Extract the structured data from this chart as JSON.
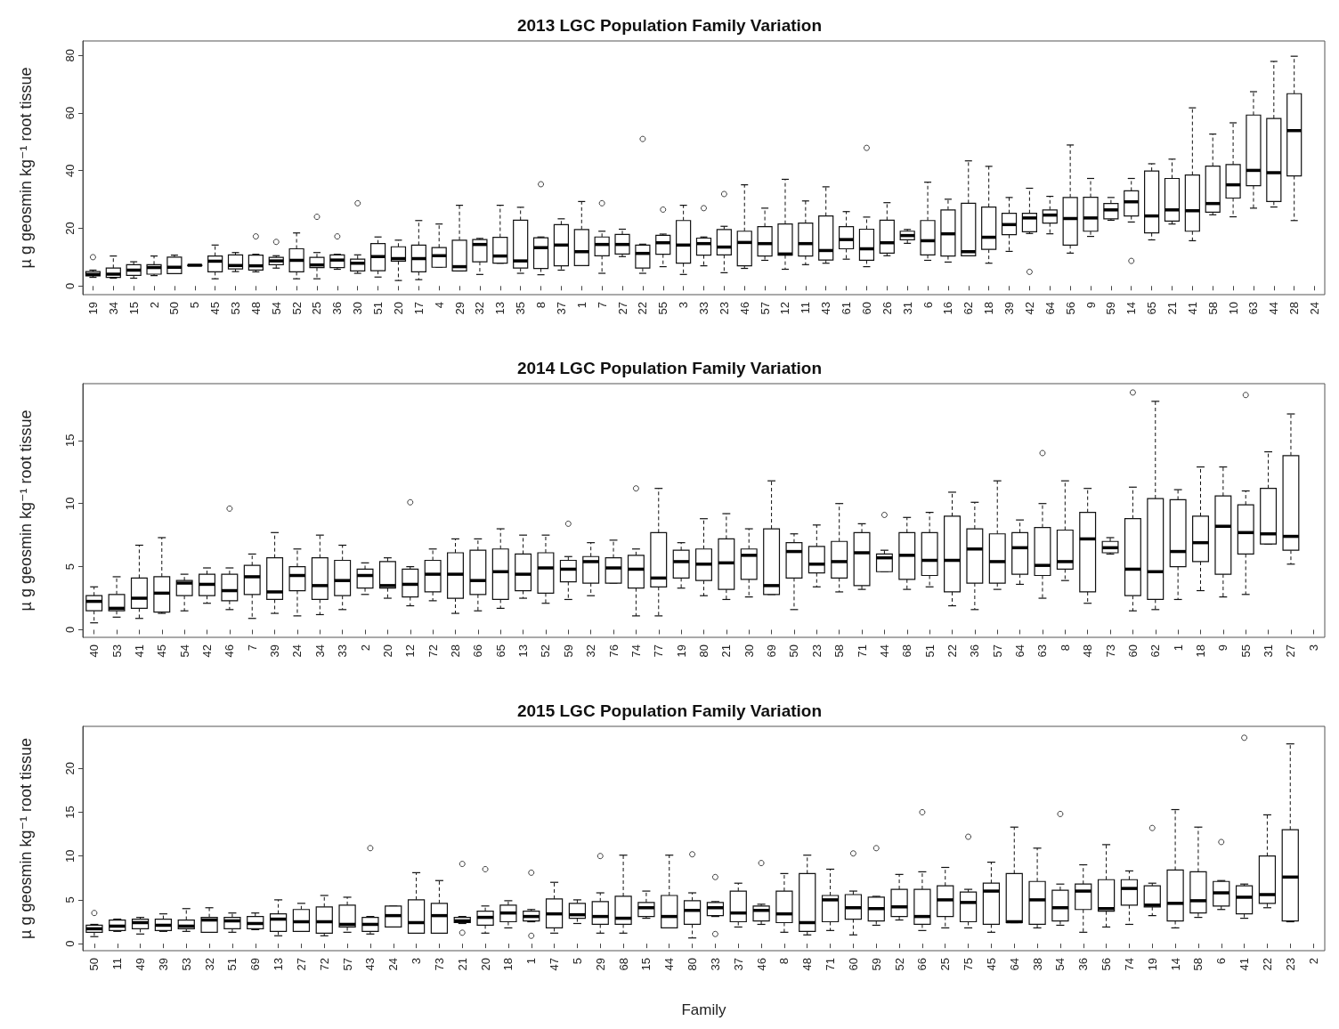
{
  "chart_data": [
    {
      "type": "box",
      "title": "2013 LGC Population Family Variation",
      "ylabel": "µ g geosmin kg⁻¹ root tissue",
      "ylim": [
        -3,
        85
      ],
      "yticks": [
        0,
        20,
        40,
        60,
        80
      ],
      "categories": [
        "19",
        "34",
        "15",
        "2",
        "50",
        "5",
        "45",
        "53",
        "48",
        "54",
        "52",
        "25",
        "36",
        "30",
        "51",
        "20",
        "17",
        "4",
        "29",
        "32",
        "13",
        "35",
        "8",
        "37",
        "1",
        "7",
        "27",
        "22",
        "55",
        "3",
        "33",
        "23",
        "46",
        "57",
        "12",
        "11",
        "43",
        "61",
        "60",
        "26",
        "31",
        "6",
        "16",
        "62",
        "18",
        "39",
        "42",
        "64",
        "56",
        "9",
        "59",
        "14",
        "65",
        "21",
        "41",
        "58",
        "10",
        "63",
        "44",
        "28",
        "24"
      ],
      "boxes": [
        {
          "low": 3,
          "q1": 3.5,
          "median": 4,
          "q3": 5,
          "high": 5.5,
          "outliers": [
            10
          ]
        },
        {
          "low": 2.7,
          "q1": 3,
          "median": 4.1,
          "q3": 6.2,
          "high": 10.4
        },
        {
          "low": 2.7,
          "q1": 3.7,
          "median": 5.5,
          "q3": 7.4,
          "high": 8.4
        },
        {
          "low": 3.6,
          "q1": 4.1,
          "median": 6.4,
          "q3": 7.4,
          "high": 10.4
        },
        {
          "low": 4.3,
          "q1": 4.3,
          "median": 6.5,
          "q3": 10,
          "high": 10.7
        },
        {
          "low": 7.2,
          "q1": 7.2,
          "median": 7.2,
          "q3": 7.2,
          "high": 7.2
        },
        {
          "low": 2.5,
          "q1": 4.9,
          "median": 8.6,
          "q3": 10.4,
          "high": 14.2
        },
        {
          "low": 5,
          "q1": 5.9,
          "median": 7.1,
          "q3": 10.8,
          "high": 11.6
        },
        {
          "low": 4.9,
          "q1": 5.5,
          "median": 7,
          "q3": 10.7,
          "high": 11,
          "outliers": [
            17.2
          ]
        },
        {
          "low": 6.2,
          "q1": 7.4,
          "median": 8.7,
          "q3": 9.9,
          "high": 10.5,
          "outliers": [
            15.3
          ]
        },
        {
          "low": 2.5,
          "q1": 4.9,
          "median": 8.9,
          "q3": 12.9,
          "high": 18.4
        },
        {
          "low": 2.5,
          "q1": 6.4,
          "median": 7.3,
          "q3": 9.9,
          "high": 11.6,
          "outliers": [
            24
          ]
        },
        {
          "low": 5.8,
          "q1": 6.4,
          "median": 9,
          "q3": 10.8,
          "high": 11,
          "outliers": [
            17.2
          ]
        },
        {
          "low": 4.4,
          "q1": 5.2,
          "median": 7.9,
          "q3": 9.3,
          "high": 10.8,
          "outliers": [
            28.7
          ]
        },
        {
          "low": 3.1,
          "q1": 5.3,
          "median": 10.2,
          "q3": 14.7,
          "high": 17
        },
        {
          "low": 1.9,
          "q1": 8.6,
          "median": 9.5,
          "q3": 13.6,
          "high": 15.9
        },
        {
          "low": 2.2,
          "q1": 4.9,
          "median": 9.5,
          "q3": 14.2,
          "high": 22.7
        },
        {
          "low": 6.5,
          "q1": 6.5,
          "median": 10.5,
          "q3": 13.3,
          "high": 21.5
        },
        {
          "low": 5.2,
          "q1": 5.2,
          "median": 6.7,
          "q3": 15.9,
          "high": 28
        },
        {
          "low": 4,
          "q1": 8.4,
          "median": 14.4,
          "q3": 16.1,
          "high": 16.5
        },
        {
          "low": 7.9,
          "q1": 7.9,
          "median": 10.4,
          "q3": 16.9,
          "high": 28
        },
        {
          "low": 4.4,
          "q1": 6.2,
          "median": 8.7,
          "q3": 22.8,
          "high": 27.3
        },
        {
          "low": 3.9,
          "q1": 6.1,
          "median": 13.3,
          "q3": 16.7,
          "high": 17,
          "outliers": [
            35.3
          ]
        },
        {
          "low": 5.5,
          "q1": 7,
          "median": 14.2,
          "q3": 21.3,
          "high": 23.3
        },
        {
          "low": 7.1,
          "q1": 7.1,
          "median": 11.9,
          "q3": 19.6,
          "high": 29.3
        },
        {
          "low": 4.4,
          "q1": 10.5,
          "median": 14.4,
          "q3": 17,
          "high": 19,
          "outliers": [
            28.7
          ]
        },
        {
          "low": 10.2,
          "q1": 11.1,
          "median": 14.4,
          "q3": 17.9,
          "high": 19.7
        },
        {
          "low": 4.4,
          "q1": 6.2,
          "median": 11.3,
          "q3": 14.2,
          "high": 14.5,
          "outliers": [
            51
          ]
        },
        {
          "low": 6.7,
          "q1": 11,
          "median": 15,
          "q3": 17.6,
          "high": 18,
          "outliers": [
            26.5
          ]
        },
        {
          "low": 4,
          "q1": 7.9,
          "median": 14.2,
          "q3": 22.7,
          "high": 28
        },
        {
          "low": 7,
          "q1": 10.7,
          "median": 14.7,
          "q3": 16.6,
          "high": 17,
          "outliers": [
            27
          ]
        },
        {
          "low": 4.6,
          "q1": 10.8,
          "median": 13.5,
          "q3": 19.6,
          "high": 20.7,
          "outliers": [
            31.9
          ]
        },
        {
          "low": 6.1,
          "q1": 7,
          "median": 15.1,
          "q3": 19,
          "high": 35.1
        },
        {
          "low": 8.9,
          "q1": 10.4,
          "median": 14.7,
          "q3": 20.6,
          "high": 27
        },
        {
          "low": 5.8,
          "q1": 10.7,
          "median": 11.1,
          "q3": 21.5,
          "high": 37
        },
        {
          "low": 7.4,
          "q1": 10.4,
          "median": 14.7,
          "q3": 21.8,
          "high": 29.5
        },
        {
          "low": 7.9,
          "q1": 9,
          "median": 12.3,
          "q3": 24.3,
          "high": 34.4
        },
        {
          "low": 9.3,
          "q1": 12.9,
          "median": 16.1,
          "q3": 20.6,
          "high": 25.8
        },
        {
          "low": 6.7,
          "q1": 8.9,
          "median": 12.9,
          "q3": 19.7,
          "high": 23.9,
          "outliers": [
            47.9
          ]
        },
        {
          "low": 10.5,
          "q1": 11.4,
          "median": 15,
          "q3": 22.8,
          "high": 28.9
        },
        {
          "low": 14.8,
          "q1": 16,
          "median": 17.5,
          "q3": 19,
          "high": 19.6
        },
        {
          "low": 8.9,
          "q1": 10.8,
          "median": 15.7,
          "q3": 22.7,
          "high": 36
        },
        {
          "low": 8.3,
          "q1": 10.4,
          "median": 18.1,
          "q3": 26.4,
          "high": 30.1
        },
        {
          "low": 10.5,
          "q1": 10.5,
          "median": 11.9,
          "q3": 28.7,
          "high": 43.4
        },
        {
          "low": 7.9,
          "q1": 12.7,
          "median": 16.9,
          "q3": 27.4,
          "high": 41.5
        },
        {
          "low": 12,
          "q1": 17.8,
          "median": 21.3,
          "q3": 25.2,
          "high": 30.7
        },
        {
          "low": 18.2,
          "q1": 18.8,
          "median": 23.6,
          "q3": 25.2,
          "high": 33.9,
          "outliers": [
            4.9
          ]
        },
        {
          "low": 18.1,
          "q1": 21.8,
          "median": 24.6,
          "q3": 26.4,
          "high": 31.1
        },
        {
          "low": 11.4,
          "q1": 14.2,
          "median": 23.4,
          "q3": 30.7,
          "high": 48.9
        },
        {
          "low": 17.2,
          "q1": 19,
          "median": 23.6,
          "q3": 30.8,
          "high": 37.3
        },
        {
          "low": 22.8,
          "q1": 23.3,
          "median": 26.4,
          "q3": 28.6,
          "high": 30.7
        },
        {
          "low": 22.2,
          "q1": 24.3,
          "median": 29.2,
          "q3": 33,
          "high": 37.3,
          "outliers": [
            8.7
          ]
        },
        {
          "low": 16,
          "q1": 18.4,
          "median": 24.3,
          "q3": 39.9,
          "high": 42.4
        },
        {
          "low": 21.5,
          "q1": 22.5,
          "median": 26.4,
          "q3": 37.3,
          "high": 44
        },
        {
          "low": 15.7,
          "q1": 19,
          "median": 26.1,
          "q3": 38.5,
          "high": 61.8
        },
        {
          "low": 24.7,
          "q1": 25.6,
          "median": 28.6,
          "q3": 41.6,
          "high": 52.7
        },
        {
          "low": 24,
          "q1": 30.5,
          "median": 35.1,
          "q3": 42.1,
          "high": 56.6
        },
        {
          "low": 27,
          "q1": 34.8,
          "median": 40.1,
          "q3": 59.3,
          "high": 67.4
        },
        {
          "low": 27.4,
          "q1": 29.3,
          "median": 39.3,
          "q3": 58.1,
          "high": 77.9
        },
        {
          "low": 22.7,
          "q1": 38.2,
          "median": 53.9,
          "q3": 66.7,
          "high": 79.7
        },
        null
      ]
    },
    {
      "type": "box",
      "title": "2014 LGC Population Family Variation",
      "ylabel": "µ g geosmin kg⁻¹ root tissue",
      "ylim": [
        -0.6,
        19.5
      ],
      "yticks": [
        0,
        5,
        10,
        15
      ],
      "categories": [
        "40",
        "53",
        "41",
        "45",
        "54",
        "42",
        "46",
        "7",
        "39",
        "24",
        "34",
        "33",
        "2",
        "20",
        "12",
        "72",
        "28",
        "66",
        "65",
        "13",
        "52",
        "59",
        "32",
        "76",
        "74",
        "77",
        "19",
        "80",
        "21",
        "30",
        "69",
        "50",
        "23",
        "58",
        "71",
        "44",
        "68",
        "51",
        "22",
        "36",
        "57",
        "64",
        "63",
        "8",
        "48",
        "73",
        "60",
        "62",
        "1",
        "18",
        "9",
        "55",
        "31",
        "27",
        "3"
      ],
      "boxes": [
        {
          "low": 0.55,
          "q1": 1.5,
          "median": 2.25,
          "q3": 2.7,
          "high": 3.4
        },
        {
          "low": 1,
          "q1": 1.5,
          "median": 1.7,
          "q3": 2.8,
          "high": 4.2
        },
        {
          "low": 0.9,
          "q1": 1.7,
          "median": 2.5,
          "q3": 4.1,
          "high": 6.7
        },
        {
          "low": 1.3,
          "q1": 1.4,
          "median": 2.9,
          "q3": 4.2,
          "high": 7.3
        },
        {
          "low": 1.5,
          "q1": 2.7,
          "median": 3.7,
          "q3": 3.9,
          "high": 4.4
        },
        {
          "low": 2.1,
          "q1": 2.7,
          "median": 3.6,
          "q3": 4.4,
          "high": 4.9
        },
        {
          "low": 1.6,
          "q1": 2.3,
          "median": 3.1,
          "q3": 4.4,
          "high": 4.9,
          "outliers": [
            9.6
          ]
        },
        {
          "low": 0.9,
          "q1": 2.8,
          "median": 4.2,
          "q3": 5.1,
          "high": 6
        },
        {
          "low": 1.3,
          "q1": 2.4,
          "median": 3,
          "q3": 5.7,
          "high": 7.7
        },
        {
          "low": 1.1,
          "q1": 3.1,
          "median": 4.3,
          "q3": 5,
          "high": 6.4
        },
        {
          "low": 1.2,
          "q1": 2.4,
          "median": 3.5,
          "q3": 5.7,
          "high": 7.5
        },
        {
          "low": 1.6,
          "q1": 2.7,
          "median": 3.9,
          "q3": 5.5,
          "high": 6.7
        },
        {
          "low": 2.8,
          "q1": 3.3,
          "median": 4.3,
          "q3": 4.8,
          "high": 5.3
        },
        {
          "low": 2.5,
          "q1": 3.3,
          "median": 3.5,
          "q3": 5.4,
          "high": 5.7
        },
        {
          "low": 1.9,
          "q1": 2.6,
          "median": 3.6,
          "q3": 4.8,
          "high": 5,
          "outliers": [
            10.1
          ]
        },
        {
          "low": 2.3,
          "q1": 3,
          "median": 4.4,
          "q3": 5.5,
          "high": 6.4
        },
        {
          "low": 1.3,
          "q1": 2.5,
          "median": 4.4,
          "q3": 6.1,
          "high": 7.2
        },
        {
          "low": 1.5,
          "q1": 2.8,
          "median": 3.9,
          "q3": 6.3,
          "high": 7.2
        },
        {
          "low": 1.7,
          "q1": 2.4,
          "median": 4.6,
          "q3": 6.4,
          "high": 8
        },
        {
          "low": 2.5,
          "q1": 3.1,
          "median": 4.4,
          "q3": 6,
          "high": 7.5
        },
        {
          "low": 2.1,
          "q1": 2.9,
          "median": 4.9,
          "q3": 6.1,
          "high": 7.5
        },
        {
          "low": 2.4,
          "q1": 3.8,
          "median": 4.8,
          "q3": 5.5,
          "high": 5.8,
          "outliers": [
            8.4
          ]
        },
        {
          "low": 2.7,
          "q1": 3.7,
          "median": 5.4,
          "q3": 5.8,
          "high": 6.9
        },
        {
          "low": 3.7,
          "q1": 3.7,
          "median": 4.9,
          "q3": 5.7,
          "high": 7.1
        },
        {
          "low": 1.1,
          "q1": 3.3,
          "median": 4.8,
          "q3": 5.9,
          "high": 6.4,
          "outliers": [
            11.2
          ]
        },
        {
          "low": 1.1,
          "q1": 3.4,
          "median": 4.1,
          "q3": 7.7,
          "high": 11.2
        },
        {
          "low": 3.3,
          "q1": 4.1,
          "median": 5.4,
          "q3": 6.3,
          "high": 6.9
        },
        {
          "low": 2.7,
          "q1": 3.9,
          "median": 5.2,
          "q3": 6.4,
          "high": 8.8
        },
        {
          "low": 2.4,
          "q1": 3.2,
          "median": 5.3,
          "q3": 7.2,
          "high": 9.2
        },
        {
          "low": 2.6,
          "q1": 4,
          "median": 5.9,
          "q3": 6.4,
          "high": 8
        },
        {
          "low": 2.8,
          "q1": 2.8,
          "median": 3.5,
          "q3": 8,
          "high": 11.8
        },
        {
          "low": 1.6,
          "q1": 4.1,
          "median": 6.2,
          "q3": 6.9,
          "high": 7.6
        },
        {
          "low": 3.4,
          "q1": 4.5,
          "median": 5.2,
          "q3": 6.6,
          "high": 8.3
        },
        {
          "low": 3,
          "q1": 4.1,
          "median": 5.4,
          "q3": 7,
          "high": 10
        },
        {
          "low": 3.2,
          "q1": 3.5,
          "median": 6.1,
          "q3": 7.7,
          "high": 8.4
        },
        {
          "low": 4.6,
          "q1": 4.6,
          "median": 5.7,
          "q3": 6,
          "high": 6.3,
          "outliers": [
            9.1
          ]
        },
        {
          "low": 3.2,
          "q1": 4,
          "median": 5.9,
          "q3": 7.7,
          "high": 8.9
        },
        {
          "low": 3.4,
          "q1": 4.3,
          "median": 5.5,
          "q3": 7.7,
          "high": 9.3
        },
        {
          "low": 1.9,
          "q1": 3,
          "median": 5.5,
          "q3": 9,
          "high": 10.9
        },
        {
          "low": 1.6,
          "q1": 3.7,
          "median": 6.4,
          "q3": 8,
          "high": 10.1
        },
        {
          "low": 3.2,
          "q1": 3.7,
          "median": 5.4,
          "q3": 7.6,
          "high": 11.8
        },
        {
          "low": 3.6,
          "q1": 4.4,
          "median": 6.5,
          "q3": 7.7,
          "high": 8.7
        },
        {
          "low": 2.5,
          "q1": 4.3,
          "median": 5.1,
          "q3": 8.1,
          "high": 10,
          "outliers": [
            14
          ]
        },
        {
          "low": 3.9,
          "q1": 4.8,
          "median": 5.4,
          "q3": 7.9,
          "high": 11.8
        },
        {
          "low": 2.1,
          "q1": 3,
          "median": 7.2,
          "q3": 9.3,
          "high": 11.2
        },
        {
          "low": 6,
          "q1": 6.1,
          "median": 6.5,
          "q3": 7,
          "high": 7.3
        },
        {
          "low": 1.5,
          "q1": 2.7,
          "median": 4.8,
          "q3": 8.8,
          "high": 11.3,
          "outliers": [
            18.8
          ]
        },
        {
          "low": 1.6,
          "q1": 2.4,
          "median": 4.6,
          "q3": 10.4,
          "high": 18.1
        },
        {
          "low": 2.4,
          "q1": 5,
          "median": 6.2,
          "q3": 10.3,
          "high": 11.1
        },
        {
          "low": 3.1,
          "q1": 5.4,
          "median": 6.9,
          "q3": 9,
          "high": 12.9
        },
        {
          "low": 2.6,
          "q1": 4.4,
          "median": 8.2,
          "q3": 10.6,
          "high": 12.9
        },
        {
          "low": 2.8,
          "q1": 6,
          "median": 7.7,
          "q3": 9.9,
          "high": 11,
          "outliers": [
            18.6
          ]
        },
        {
          "low": 6.8,
          "q1": 6.8,
          "median": 7.6,
          "q3": 11.2,
          "high": 14.1
        },
        {
          "low": 5.2,
          "q1": 6.3,
          "median": 7.4,
          "q3": 13.8,
          "high": 17.1
        },
        null
      ]
    },
    {
      "type": "box",
      "title": "2015 LGC Population Family Variation",
      "xlabel": "Family",
      "ylabel": "µ g geosmin kg⁻¹ root tissue",
      "ylim": [
        -0.8,
        24.8
      ],
      "yticks": [
        0,
        5,
        10,
        15,
        20
      ],
      "categories": [
        "50",
        "11",
        "49",
        "39",
        "53",
        "32",
        "51",
        "69",
        "13",
        "27",
        "72",
        "57",
        "43",
        "24",
        "3",
        "73",
        "21",
        "20",
        "18",
        "1",
        "47",
        "5",
        "29",
        "68",
        "15",
        "44",
        "80",
        "33",
        "37",
        "46",
        "8",
        "48",
        "71",
        "60",
        "59",
        "52",
        "66",
        "25",
        "75",
        "45",
        "64",
        "38",
        "54",
        "36",
        "56",
        "74",
        "19",
        "14",
        "58",
        "6",
        "41",
        "22",
        "23",
        "2"
      ],
      "boxes": [
        {
          "low": 0.8,
          "q1": 1.3,
          "median": 1.7,
          "q3": 2.1,
          "high": 2.2,
          "outliers": [
            3.5
          ]
        },
        {
          "low": 1.4,
          "q1": 1.5,
          "median": 2,
          "q3": 2.7,
          "high": 2.8
        },
        {
          "low": 1.1,
          "q1": 1.7,
          "median": 2.4,
          "q3": 2.8,
          "high": 3
        },
        {
          "low": 1.4,
          "q1": 1.5,
          "median": 2.1,
          "q3": 2.8,
          "high": 3.4
        },
        {
          "low": 1.4,
          "q1": 1.7,
          "median": 2,
          "q3": 2.7,
          "high": 4
        },
        {
          "low": 1.3,
          "q1": 1.3,
          "median": 2.7,
          "q3": 3,
          "high": 4.1
        },
        {
          "low": 1.3,
          "q1": 1.7,
          "median": 2.6,
          "q3": 3,
          "high": 3.5
        },
        {
          "low": 1.6,
          "q1": 1.7,
          "median": 2.3,
          "q3": 3.1,
          "high": 3.5
        },
        {
          "low": 0.9,
          "q1": 1.4,
          "median": 2.8,
          "q3": 3.4,
          "high": 5
        },
        {
          "low": 1.4,
          "q1": 1.4,
          "median": 2.5,
          "q3": 3.9,
          "high": 4.6
        },
        {
          "low": 0.9,
          "q1": 1.2,
          "median": 2.5,
          "q3": 4.2,
          "high": 5.5
        },
        {
          "low": 1.3,
          "q1": 1.9,
          "median": 2.2,
          "q3": 4.4,
          "high": 5.3
        },
        {
          "low": 1.1,
          "q1": 1.4,
          "median": 2.2,
          "q3": 3,
          "high": 3.1,
          "outliers": [
            10.9
          ]
        },
        {
          "low": 1.9,
          "q1": 1.9,
          "median": 3.2,
          "q3": 4.3,
          "high": 4.3
        },
        {
          "low": 1.2,
          "q1": 1.2,
          "median": 2.4,
          "q3": 5,
          "high": 8.1
        },
        {
          "low": 1.2,
          "q1": 1.2,
          "median": 3.2,
          "q3": 4.6,
          "high": 7.2
        },
        {
          "low": 2.3,
          "q1": 2.4,
          "median": 2.6,
          "q3": 3,
          "high": 3.1,
          "outliers": [
            9.1,
            1.25
          ]
        },
        {
          "low": 1.2,
          "q1": 2.1,
          "median": 3,
          "q3": 3.7,
          "high": 4.3,
          "outliers": [
            8.5
          ]
        },
        {
          "low": 1.8,
          "q1": 2.5,
          "median": 3.5,
          "q3": 4.4,
          "high": 4.9
        },
        {
          "low": 2.5,
          "q1": 2.6,
          "median": 3.1,
          "q3": 3.7,
          "high": 3.9,
          "outliers": [
            8.1,
            0.9
          ]
        },
        {
          "low": 1.2,
          "q1": 1.8,
          "median": 3.4,
          "q3": 5.1,
          "high": 7
        },
        {
          "low": 2.3,
          "q1": 2.9,
          "median": 3.3,
          "q3": 4.6,
          "high": 5
        },
        {
          "low": 1.2,
          "q1": 2.2,
          "median": 3.1,
          "q3": 4.8,
          "high": 5.8,
          "outliers": [
            10
          ]
        },
        {
          "low": 1.2,
          "q1": 2.2,
          "median": 2.9,
          "q3": 5.4,
          "high": 10.1
        },
        {
          "low": 2.9,
          "q1": 3.1,
          "median": 4.1,
          "q3": 4.7,
          "high": 6
        },
        {
          "low": 1.8,
          "q1": 1.8,
          "median": 3.1,
          "q3": 5.5,
          "high": 10.1
        },
        {
          "low": 0.65,
          "q1": 2.2,
          "median": 3.8,
          "q3": 4.9,
          "high": 5.8,
          "outliers": [
            10.2
          ]
        },
        {
          "low": 3.1,
          "q1": 3.2,
          "median": 4.1,
          "q3": 4.7,
          "high": 4.8,
          "outliers": [
            7.6,
            1.1
          ]
        },
        {
          "low": 1.9,
          "q1": 2.5,
          "median": 3.5,
          "q3": 6,
          "high": 6.9
        },
        {
          "low": 2.2,
          "q1": 2.6,
          "median": 3.8,
          "q3": 4.3,
          "high": 4.5,
          "outliers": [
            9.2
          ]
        },
        {
          "low": 1.3,
          "q1": 2.4,
          "median": 3.4,
          "q3": 6,
          "high": 8
        },
        {
          "low": 1,
          "q1": 1.4,
          "median": 2.4,
          "q3": 8,
          "high": 10.1
        },
        {
          "low": 1.5,
          "q1": 2.5,
          "median": 5,
          "q3": 5.5,
          "high": 8.5
        },
        {
          "low": 1,
          "q1": 2.8,
          "median": 4.1,
          "q3": 5.6,
          "high": 6,
          "outliers": [
            10.3
          ]
        },
        {
          "low": 2.1,
          "q1": 2.6,
          "median": 4,
          "q3": 5.3,
          "high": 5.4,
          "outliers": [
            10.9
          ]
        },
        {
          "low": 2.7,
          "q1": 3.1,
          "median": 4.2,
          "q3": 6.2,
          "high": 7.9
        },
        {
          "low": 1.5,
          "q1": 2.2,
          "median": 3.1,
          "q3": 6.2,
          "high": 8.2,
          "outliers": [
            15
          ]
        },
        {
          "low": 1.8,
          "q1": 3.1,
          "median": 5,
          "q3": 6.6,
          "high": 8.7
        },
        {
          "low": 1.8,
          "q1": 2.5,
          "median": 4.7,
          "q3": 5.9,
          "high": 6.2,
          "outliers": [
            12.2
          ]
        },
        {
          "low": 1.3,
          "q1": 2.2,
          "median": 6,
          "q3": 6.9,
          "high": 9.3
        },
        {
          "low": 2.4,
          "q1": 2.4,
          "median": 2.5,
          "q3": 8,
          "high": 13.3
        },
        {
          "low": 1.8,
          "q1": 2.2,
          "median": 5,
          "q3": 7.1,
          "high": 10.9
        },
        {
          "low": 2.1,
          "q1": 2.6,
          "median": 4.1,
          "q3": 6.1,
          "high": 6.8,
          "outliers": [
            14.8
          ]
        },
        {
          "low": 1.3,
          "q1": 3.9,
          "median": 6,
          "q3": 6.8,
          "high": 9
        },
        {
          "low": 1.9,
          "q1": 3.7,
          "median": 4,
          "q3": 7.3,
          "high": 11.3
        },
        {
          "low": 2.2,
          "q1": 4.4,
          "median": 6.3,
          "q3": 7.3,
          "high": 8.3
        },
        {
          "low": 3.2,
          "q1": 4.2,
          "median": 4.4,
          "q3": 6.6,
          "high": 6.9,
          "outliers": [
            13.2
          ]
        },
        {
          "low": 1.8,
          "q1": 2.6,
          "median": 4.6,
          "q3": 8.4,
          "high": 15.3
        },
        {
          "low": 3,
          "q1": 3.5,
          "median": 4.9,
          "q3": 8.2,
          "high": 13.3
        },
        {
          "low": 3.9,
          "q1": 4.3,
          "median": 5.8,
          "q3": 7.1,
          "high": 7.2,
          "outliers": [
            11.6
          ]
        },
        {
          "low": 2.9,
          "q1": 3.4,
          "median": 5.3,
          "q3": 6.6,
          "high": 6.8,
          "outliers": [
            23.5
          ]
        },
        {
          "low": 4.1,
          "q1": 4.6,
          "median": 5.6,
          "q3": 10,
          "high": 14.7
        },
        {
          "low": 2.5,
          "q1": 2.6,
          "median": 7.6,
          "q3": 13,
          "high": 22.8
        },
        null
      ]
    }
  ]
}
